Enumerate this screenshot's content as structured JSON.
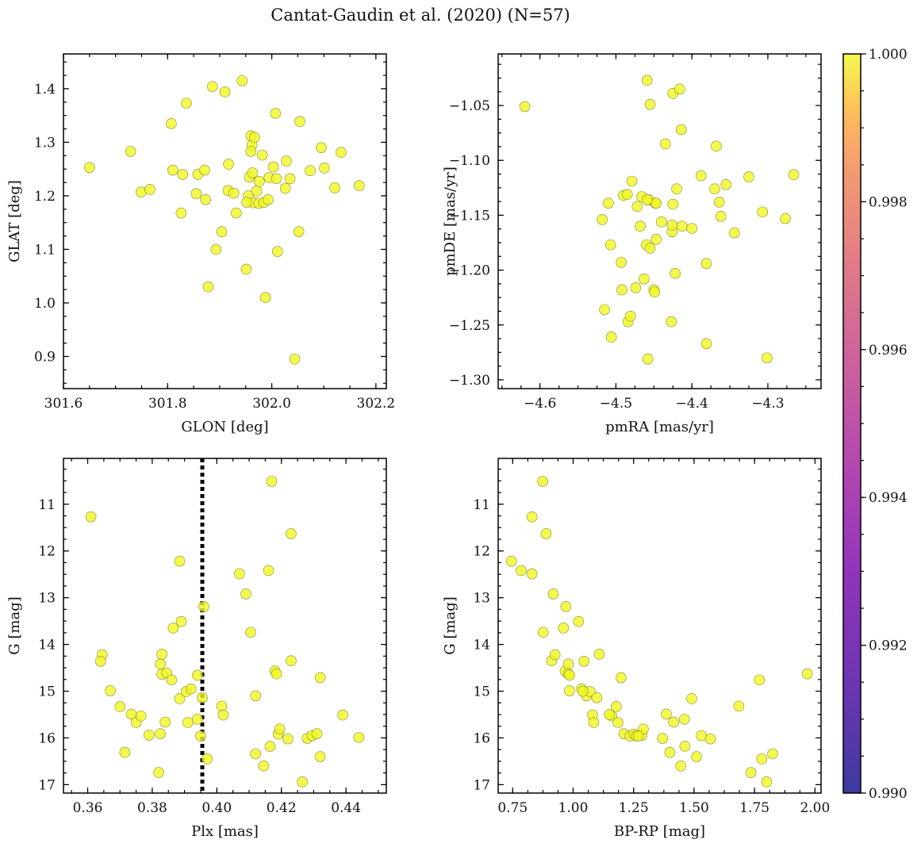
{
  "title": "Cantat-Gaudin et al. (2020) (N=57)",
  "point_color": "#f0f921",
  "colorbar": {
    "colormap": "plasma",
    "range": [
      0.99,
      1.0
    ],
    "tick_values": [
      0.99,
      0.992,
      0.994,
      0.996,
      0.998,
      1.0
    ],
    "tick_labels": [
      "0.990",
      "0.992",
      "0.994",
      "0.996",
      "0.998",
      "1.000"
    ]
  },
  "chart_data": [
    {
      "type": "scatter",
      "title": "",
      "xlabel": "GLON [deg]",
      "ylabel": "GLAT [deg]",
      "xlim": [
        301.6,
        302.22
      ],
      "ylim": [
        0.84,
        1.465
      ],
      "y_inverted": false,
      "xticks": [
        301.6,
        301.8,
        302.0,
        302.2
      ],
      "xtick_labels": [
        "301.6",
        "301.8",
        "302.0",
        "302.2"
      ],
      "yticks": [
        0.9,
        1.0,
        1.1,
        1.2,
        1.3,
        1.4
      ],
      "ytick_labels": [
        "0.9",
        "1.0",
        "1.1",
        "1.2",
        "1.3",
        "1.4"
      ],
      "points": [
        [
          301.65,
          1.253
        ],
        [
          301.729,
          1.283
        ],
        [
          301.749,
          1.207
        ],
        [
          301.766,
          1.212
        ],
        [
          301.807,
          1.335
        ],
        [
          301.81,
          1.248
        ],
        [
          301.826,
          1.168
        ],
        [
          301.829,
          1.24
        ],
        [
          301.836,
          1.373
        ],
        [
          301.855,
          1.204
        ],
        [
          301.858,
          1.24
        ],
        [
          301.871,
          1.248
        ],
        [
          301.873,
          1.193
        ],
        [
          301.878,
          1.03
        ],
        [
          301.886,
          1.404
        ],
        [
          301.893,
          1.1
        ],
        [
          301.904,
          1.133
        ],
        [
          301.91,
          1.394
        ],
        [
          301.917,
          1.259
        ],
        [
          301.916,
          1.21
        ],
        [
          301.927,
          1.205
        ],
        [
          301.932,
          1.168
        ],
        [
          301.943,
          1.415
        ],
        [
          301.951,
          1.063
        ],
        [
          301.955,
          1.2
        ],
        [
          301.957,
          1.235
        ],
        [
          301.96,
          1.312
        ],
        [
          301.962,
          1.295
        ],
        [
          301.96,
          1.283
        ],
        [
          301.967,
          1.309
        ],
        [
          301.963,
          1.243
        ],
        [
          301.964,
          1.187
        ],
        [
          301.971,
          1.209
        ],
        [
          301.975,
          1.186
        ],
        [
          301.976,
          1.227
        ],
        [
          301.982,
          1.276
        ],
        [
          301.985,
          1.188
        ],
        [
          301.988,
          1.01
        ],
        [
          301.993,
          1.193
        ],
        [
          301.995,
          1.234
        ],
        [
          302.003,
          1.254
        ],
        [
          302.007,
          1.354
        ],
        [
          302.009,
          1.232
        ],
        [
          302.011,
          1.096
        ],
        [
          302.026,
          1.214
        ],
        [
          302.028,
          1.265
        ],
        [
          302.035,
          1.232
        ],
        [
          302.044,
          0.895
        ],
        [
          302.052,
          1.133
        ],
        [
          302.054,
          1.339
        ],
        [
          302.074,
          1.247
        ],
        [
          302.095,
          1.29
        ],
        [
          302.101,
          1.252
        ],
        [
          302.121,
          1.215
        ],
        [
          302.133,
          1.281
        ],
        [
          302.168,
          1.219
        ],
        [
          301.952,
          1.188
        ]
      ]
    },
    {
      "type": "scatter",
      "title": "",
      "xlabel": "pmRA [mas/yr]",
      "ylabel": "pmDE [mas/yr]",
      "xlim": [
        -4.655,
        -4.23
      ],
      "ylim": [
        -1.308,
        -1.003
      ],
      "y_inverted": false,
      "xticks": [
        -4.6,
        -4.5,
        -4.4,
        -4.3
      ],
      "xtick_labels": [
        "−4.6",
        "−4.5",
        "−4.4",
        "−4.3"
      ],
      "yticks": [
        -1.3,
        -1.25,
        -1.2,
        -1.15,
        -1.1,
        -1.05
      ],
      "ytick_labels": [
        "−1.30",
        "−1.25",
        "−1.20",
        "−1.15",
        "−1.10",
        "−1.05"
      ],
      "points": [
        [
          -4.62,
          -1.051
        ],
        [
          -4.518,
          -1.154
        ],
        [
          -4.515,
          -1.236
        ],
        [
          -4.51,
          -1.139
        ],
        [
          -4.507,
          -1.177
        ],
        [
          -4.506,
          -1.261
        ],
        [
          -4.493,
          -1.193
        ],
        [
          -4.492,
          -1.218
        ],
        [
          -4.49,
          -1.132
        ],
        [
          -4.485,
          -1.131
        ],
        [
          -4.484,
          -1.247
        ],
        [
          -4.481,
          -1.242
        ],
        [
          -4.479,
          -1.119
        ],
        [
          -4.474,
          -1.216
        ],
        [
          -4.472,
          -1.142
        ],
        [
          -4.468,
          -1.16
        ],
        [
          -4.466,
          -1.133
        ],
        [
          -4.463,
          -1.208
        ],
        [
          -4.46,
          -1.177
        ],
        [
          -4.459,
          -1.027
        ],
        [
          -4.458,
          -1.281
        ],
        [
          -4.456,
          -1.136
        ],
        [
          -4.455,
          -1.049
        ],
        [
          -4.455,
          -1.18
        ],
        [
          -4.45,
          -1.218
        ],
        [
          -4.449,
          -1.22
        ],
        [
          -4.448,
          -1.139
        ],
        [
          -4.447,
          -1.172
        ],
        [
          -4.44,
          -1.156
        ],
        [
          -4.435,
          -1.085
        ],
        [
          -4.427,
          -1.247
        ],
        [
          -4.426,
          -1.165
        ],
        [
          -4.426,
          -1.159
        ],
        [
          -4.425,
          -1.039
        ],
        [
          -4.425,
          -1.14
        ],
        [
          -4.422,
          -1.203
        ],
        [
          -4.42,
          -1.126
        ],
        [
          -4.416,
          -1.035
        ],
        [
          -4.414,
          -1.072
        ],
        [
          -4.413,
          -1.16
        ],
        [
          -4.4,
          -1.162
        ],
        [
          -4.388,
          -1.114
        ],
        [
          -4.381,
          -1.194
        ],
        [
          -4.381,
          -1.267
        ],
        [
          -4.37,
          -1.126
        ],
        [
          -4.368,
          -1.087
        ],
        [
          -4.364,
          -1.138
        ],
        [
          -4.362,
          -1.151
        ],
        [
          -4.355,
          -1.122
        ],
        [
          -4.344,
          -1.166
        ],
        [
          -4.325,
          -1.115
        ],
        [
          -4.307,
          -1.147
        ],
        [
          -4.301,
          -1.28
        ],
        [
          -4.277,
          -1.153
        ],
        [
          -4.266,
          -1.113
        ],
        [
          -4.447,
          -1.139
        ],
        [
          -4.459,
          -1.136
        ]
      ]
    },
    {
      "type": "scatter",
      "title": "",
      "xlabel": "Plx [mas]",
      "ylabel": "G [mag]",
      "xlim": [
        0.3525,
        0.4525
      ],
      "ylim": [
        17.18,
        10.02
      ],
      "y_inverted": true,
      "xticks": [
        0.36,
        0.38,
        0.4,
        0.42,
        0.44
      ],
      "xtick_labels": [
        "0.36",
        "0.38",
        "0.40",
        "0.42",
        "0.44"
      ],
      "yticks": [
        11,
        12,
        13,
        14,
        15,
        16,
        17
      ],
      "ytick_labels": [
        "11",
        "12",
        "13",
        "14",
        "15",
        "16",
        "17"
      ],
      "reference_line_x": 0.3955,
      "points": [
        [
          0.361,
          11.27
        ],
        [
          0.3645,
          14.22
        ],
        [
          0.364,
          14.36
        ],
        [
          0.367,
          14.99
        ],
        [
          0.37,
          15.33
        ],
        [
          0.3715,
          16.31
        ],
        [
          0.3735,
          15.49
        ],
        [
          0.375,
          15.67
        ],
        [
          0.3765,
          15.53
        ],
        [
          0.379,
          15.94
        ],
        [
          0.382,
          16.74
        ],
        [
          0.3825,
          15.91
        ],
        [
          0.3825,
          14.42
        ],
        [
          0.383,
          14.21
        ],
        [
          0.383,
          14.64
        ],
        [
          0.384,
          15.66
        ],
        [
          0.3845,
          14.61
        ],
        [
          0.386,
          14.76
        ],
        [
          0.3865,
          13.65
        ],
        [
          0.3885,
          12.22
        ],
        [
          0.3885,
          15.16
        ],
        [
          0.389,
          13.51
        ],
        [
          0.3905,
          15.01
        ],
        [
          0.391,
          15.67
        ],
        [
          0.392,
          14.95
        ],
        [
          0.394,
          15.6
        ],
        [
          0.394,
          14.66
        ],
        [
          0.395,
          15.96
        ],
        [
          0.3955,
          15.14
        ],
        [
          0.396,
          13.19
        ],
        [
          0.397,
          16.45
        ],
        [
          0.4015,
          15.32
        ],
        [
          0.402,
          15.51
        ],
        [
          0.407,
          12.49
        ],
        [
          0.409,
          12.92
        ],
        [
          0.4105,
          13.74
        ],
        [
          0.412,
          16.34
        ],
        [
          0.412,
          15.1
        ],
        [
          0.4145,
          16.6
        ],
        [
          0.416,
          12.42
        ],
        [
          0.4165,
          16.18
        ],
        [
          0.417,
          10.51
        ],
        [
          0.418,
          14.57
        ],
        [
          0.4185,
          14.63
        ],
        [
          0.419,
          15.92
        ],
        [
          0.4195,
          15.81
        ],
        [
          0.422,
          16.02
        ],
        [
          0.423,
          11.63
        ],
        [
          0.423,
          14.35
        ],
        [
          0.4265,
          16.94
        ],
        [
          0.428,
          16.01
        ],
        [
          0.4295,
          15.95
        ],
        [
          0.431,
          15.91
        ],
        [
          0.432,
          14.71
        ],
        [
          0.432,
          16.4
        ],
        [
          0.439,
          15.51
        ],
        [
          0.444,
          15.99
        ]
      ]
    },
    {
      "type": "scatter",
      "title": "",
      "xlabel": "BP-RP [mag]",
      "ylabel": "G [mag]",
      "xlim": [
        0.69,
        2.025
      ],
      "ylim": [
        17.18,
        10.02
      ],
      "y_inverted": true,
      "xticks": [
        0.75,
        1.0,
        1.25,
        1.5,
        1.75,
        2.0
      ],
      "xtick_labels": [
        "0.75",
        "1.00",
        "1.25",
        "1.50",
        "1.75",
        "2.00"
      ],
      "yticks": [
        11,
        12,
        13,
        14,
        15,
        16,
        17
      ],
      "ytick_labels": [
        "11",
        "12",
        "13",
        "14",
        "15",
        "16",
        "17"
      ],
      "points": [
        [
          0.745,
          12.22
        ],
        [
          0.785,
          12.42
        ],
        [
          0.83,
          11.27
        ],
        [
          0.83,
          12.49
        ],
        [
          0.874,
          10.51
        ],
        [
          0.876,
          13.74
        ],
        [
          0.888,
          11.63
        ],
        [
          0.911,
          14.35
        ],
        [
          0.918,
          12.92
        ],
        [
          0.925,
          14.22
        ],
        [
          0.96,
          13.65
        ],
        [
          0.967,
          14.57
        ],
        [
          0.97,
          13.19
        ],
        [
          0.98,
          14.42
        ],
        [
          0.98,
          14.63
        ],
        [
          0.985,
          14.66
        ],
        [
          0.985,
          14.99
        ],
        [
          1.022,
          13.51
        ],
        [
          1.035,
          14.95
        ],
        [
          1.045,
          14.36
        ],
        [
          1.055,
          15.1
        ],
        [
          1.07,
          15.01
        ],
        [
          1.08,
          15.51
        ],
        [
          1.085,
          15.67
        ],
        [
          1.098,
          15.14
        ],
        [
          1.108,
          14.21
        ],
        [
          1.16,
          15.53
        ],
        [
          1.178,
          15.33
        ],
        [
          1.185,
          15.67
        ],
        [
          1.198,
          14.71
        ],
        [
          1.21,
          15.91
        ],
        [
          1.235,
          15.96
        ],
        [
          1.252,
          15.92
        ],
        [
          1.262,
          15.96
        ],
        [
          1.285,
          15.94
        ],
        [
          1.29,
          15.81
        ],
        [
          1.37,
          16.01
        ],
        [
          1.385,
          15.49
        ],
        [
          1.4,
          16.31
        ],
        [
          1.415,
          15.66
        ],
        [
          1.445,
          16.6
        ],
        [
          1.46,
          15.6
        ],
        [
          1.462,
          16.18
        ],
        [
          1.49,
          15.16
        ],
        [
          1.51,
          16.4
        ],
        [
          1.53,
          15.95
        ],
        [
          1.568,
          16.02
        ],
        [
          1.685,
          15.32
        ],
        [
          1.735,
          16.74
        ],
        [
          1.77,
          14.76
        ],
        [
          1.78,
          16.45
        ],
        [
          1.8,
          16.94
        ],
        [
          1.825,
          16.34
        ],
        [
          1.968,
          14.63
        ],
        [
          1.04,
          15.0
        ],
        [
          1.15,
          15.5
        ],
        [
          1.27,
          15.96
        ]
      ]
    }
  ]
}
